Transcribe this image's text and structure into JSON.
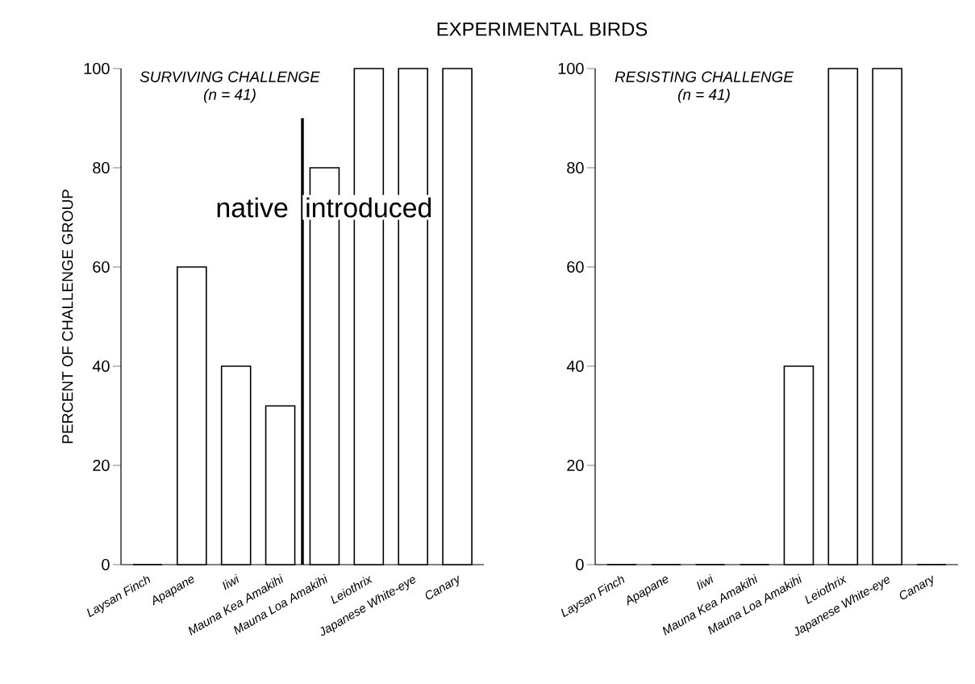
{
  "chart_data": [
    {
      "type": "bar",
      "title": "EXPERIMENTAL BIRDS",
      "subtitle": "SURVIVING CHALLENGE",
      "ylabel": "PERCENT OF CHALLENGE GROUP",
      "categories": [
        "Laysan Finch",
        "Apapane",
        "Iiwi",
        "Mauna Kea Amakihi",
        "Mauna Loa Amakihi",
        "Leiothrix",
        "Japanese White-eye",
        "Canary"
      ],
      "values": [
        0,
        60,
        40,
        32,
        80,
        100,
        100,
        100
      ],
      "color": "#000000",
      "ylim": [
        0,
        100
      ],
      "yticks": [
        0,
        20,
        40,
        60,
        80,
        100
      ],
      "annotations": [
        "(n = 41)",
        "native",
        "introduced"
      ]
    },
    {
      "type": "bar",
      "subtitle": "RESISTING CHALLENGE",
      "categories": [
        "Laysan Finch",
        "Apapane",
        "Iiwi",
        "Mauna Kea Amakihi",
        "Mauna Loa Amakihi",
        "Leiothrix",
        "Japanese White-eye",
        "Canary"
      ],
      "values": [
        0,
        0,
        0,
        0,
        40,
        100,
        100,
        0
      ],
      "color": "#000000",
      "ylim": [
        0,
        100
      ],
      "yticks": [
        0,
        20,
        40,
        60,
        80,
        100
      ],
      "annotations": [
        "(n = 41)"
      ]
    }
  ]
}
